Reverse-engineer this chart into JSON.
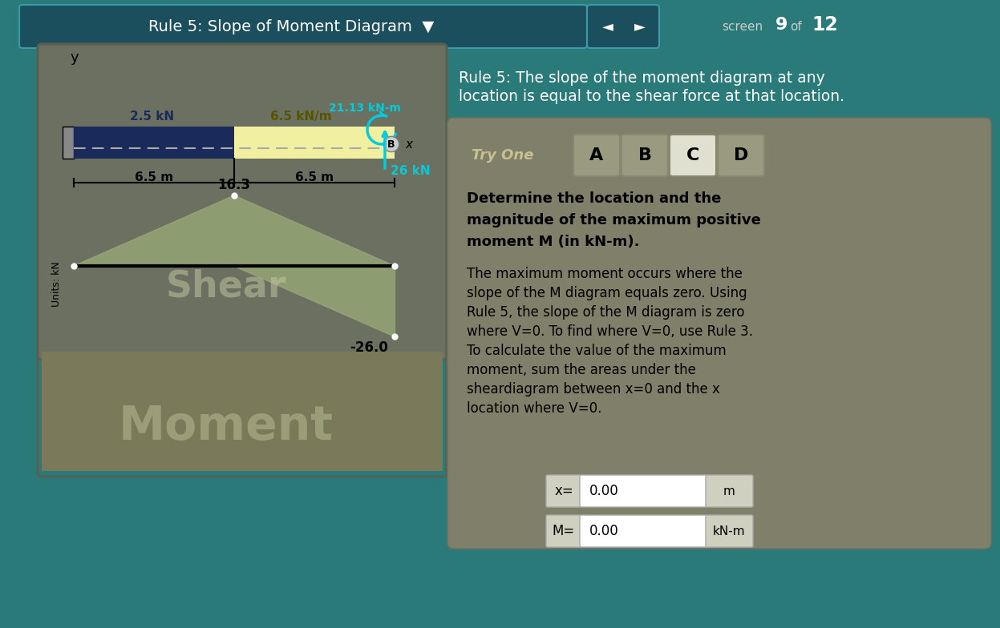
{
  "bg_color": "#2a7a7a",
  "header_text": "Rule 5: Slope of Moment Diagram",
  "rule_text_line1": "Rule 5: The slope of the moment diagram at any",
  "rule_text_line2": "location is equal to the shear force at that location.",
  "try_one_text": "Try One",
  "btn_labels": [
    "A",
    "B",
    "C",
    "D"
  ],
  "btn_selected": "C",
  "body_text_line1": "Determine the location and the",
  "body_text_line2": "magnitude of the maximum positive",
  "body_text_line3": "moment M (in kN-m).",
  "para2_line1": "The maximum moment occurs where the",
  "para2_line2": "slope of the M diagram equals zero. Using",
  "para2_line3": "Rule 5, the slope of the M diagram is zero",
  "para2_line4": "where V=0. To find where V=0, use Rule 3.",
  "para2_line5": "To calculate the value of the maximum",
  "para2_line6": "moment, sum the areas under the",
  "para2_line7": "sheardiagram between x=0 and the x",
  "para2_line8": "location where V=0.",
  "input_x_label": "x=",
  "input_x_value": "0.00",
  "input_x_unit": "m",
  "input_M_label": "M=",
  "input_M_value": "0.00",
  "input_M_unit": "kN-m",
  "load_label_2_5kN": "2.5 kN",
  "load_label_6_5kNm": "6.5 kN/m",
  "load_label_21_13kNm": "21.13 kN-m",
  "load_label_26kN": "26 kN",
  "dim_label_left": "6.5 m",
  "dim_label_right": "6.5 m",
  "shear_label_16_3": "16.3",
  "shear_label_neg26": "-26.0",
  "shear_watermark": "Shear",
  "moment_watermark": "Moment",
  "units_label": "Units: kN",
  "cyan_color": "#00ccdd",
  "dark_navy": "#1a2a5a",
  "beam_yellow": "#f0f0a0",
  "header_bg": "#1b4f5e",
  "header_border": "#3a9aaa",
  "panel_bg_top": "#6b7060",
  "panel_bg_bot": "#7a7a5a",
  "card_bg": "#80806a",
  "shear_fill": "#9aab78",
  "btn_bg": "#9a9a80",
  "btn_selected_bg": "#e0e0d0",
  "input_bg": "#ffffff",
  "unit_bg": "#d0d0c0"
}
